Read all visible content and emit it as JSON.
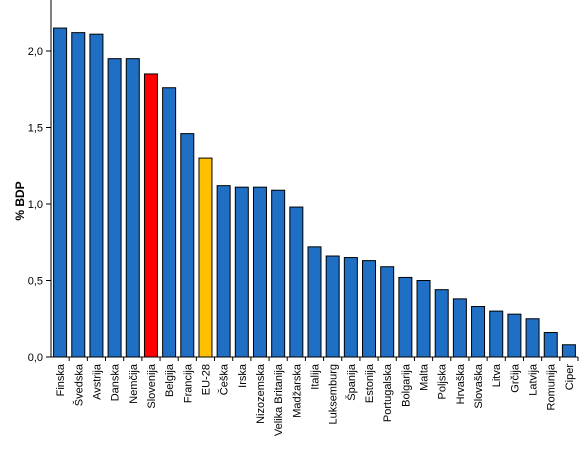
{
  "chart_data": {
    "type": "bar",
    "ylabel": "% BDP",
    "xlabel": "",
    "title": "",
    "ylim": [
      0,
      2.5
    ],
    "yticks": [
      "0,0",
      "0,5",
      "1,0",
      "1,5",
      "2,0"
    ],
    "grid": false,
    "categories": [
      "Finska",
      "Švedska",
      "Avstrija",
      "Danska",
      "Nemčija",
      "Slovenija",
      "Belgija",
      "Francija",
      "EU-28",
      "Češka",
      "Irska",
      "Nizozemska",
      "Velika Britanija",
      "Madžarska",
      "Italija",
      "Luksemburg",
      "Španija",
      "Estonija",
      "Portugalska",
      "Bolgarija",
      "Malta",
      "Poljska",
      "Hrvaška",
      "Slovaška",
      "Litva",
      "Grčija",
      "Latvija",
      "Romunija",
      "Ciper"
    ],
    "values": [
      2.15,
      2.12,
      2.11,
      1.95,
      1.95,
      1.85,
      1.76,
      1.46,
      1.3,
      1.12,
      1.11,
      1.11,
      1.09,
      0.98,
      0.72,
      0.66,
      0.65,
      0.63,
      0.59,
      0.52,
      0.5,
      0.44,
      0.38,
      0.33,
      0.3,
      0.28,
      0.25,
      0.16,
      0.08
    ],
    "colors": {
      "default": "#1F6FC5",
      "highlight_Slovenija": "#FF0000",
      "highlight_EU-28": "#FFC000",
      "outline": "#000000"
    }
  }
}
